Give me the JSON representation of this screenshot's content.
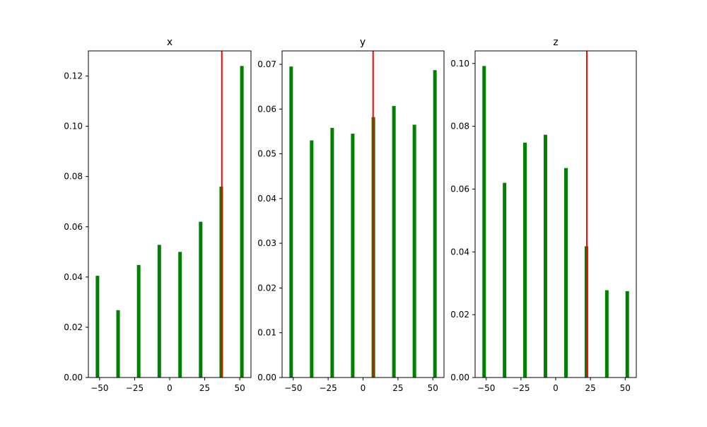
{
  "chart_data": [
    {
      "type": "bar",
      "title": "x",
      "x": [
        -51.5,
        -36.8,
        -22.1,
        -7.4,
        7.4,
        22.1,
        36.8,
        51.5
      ],
      "values": [
        0.0405,
        0.0268,
        0.0448,
        0.0528,
        0.05,
        0.062,
        0.076,
        0.124
      ],
      "xlim": [
        -58,
        58
      ],
      "ylim": [
        0,
        0.13
      ],
      "xticks": [
        "−50",
        "−25",
        "0",
        "25",
        "50"
      ],
      "yticks": [
        "0.00",
        "0.02",
        "0.04",
        "0.06",
        "0.08",
        "0.10",
        "0.12"
      ],
      "marker_x": 37.2,
      "bar_color": "#008000",
      "marker_color": "#ff0000",
      "grid": false
    },
    {
      "type": "bar",
      "title": "y",
      "x": [
        -51.5,
        -36.8,
        -22.1,
        -7.4,
        7.4,
        22.1,
        36.8,
        51.5
      ],
      "values": [
        0.0695,
        0.053,
        0.0558,
        0.0545,
        0.0582,
        0.0607,
        0.0565,
        0.0687
      ],
      "xlim": [
        -58,
        58
      ],
      "ylim": [
        0,
        0.073
      ],
      "xticks": [
        "−50",
        "−25",
        "0",
        "25",
        "50"
      ],
      "yticks": [
        "0.00",
        "0.01",
        "0.02",
        "0.03",
        "0.04",
        "0.05",
        "0.06",
        "0.07"
      ],
      "marker_x": 7.2,
      "bar_color": "#008000",
      "marker_color": "#ff0000",
      "grid": false
    },
    {
      "type": "bar",
      "title": "z",
      "x": [
        -51.5,
        -36.8,
        -22.1,
        -7.4,
        7.4,
        22.1,
        36.8,
        51.5
      ],
      "values": [
        0.0992,
        0.062,
        0.0748,
        0.0773,
        0.0667,
        0.0418,
        0.0278,
        0.0275
      ],
      "xlim": [
        -58,
        58
      ],
      "ylim": [
        0,
        0.104
      ],
      "xticks": [
        "−50",
        "−25",
        "0",
        "25",
        "50"
      ],
      "yticks": [
        "0.00",
        "0.02",
        "0.04",
        "0.06",
        "0.08",
        "0.10"
      ],
      "marker_x": 22.4,
      "bar_color": "#008000",
      "marker_color": "#ff0000",
      "grid": false
    }
  ]
}
